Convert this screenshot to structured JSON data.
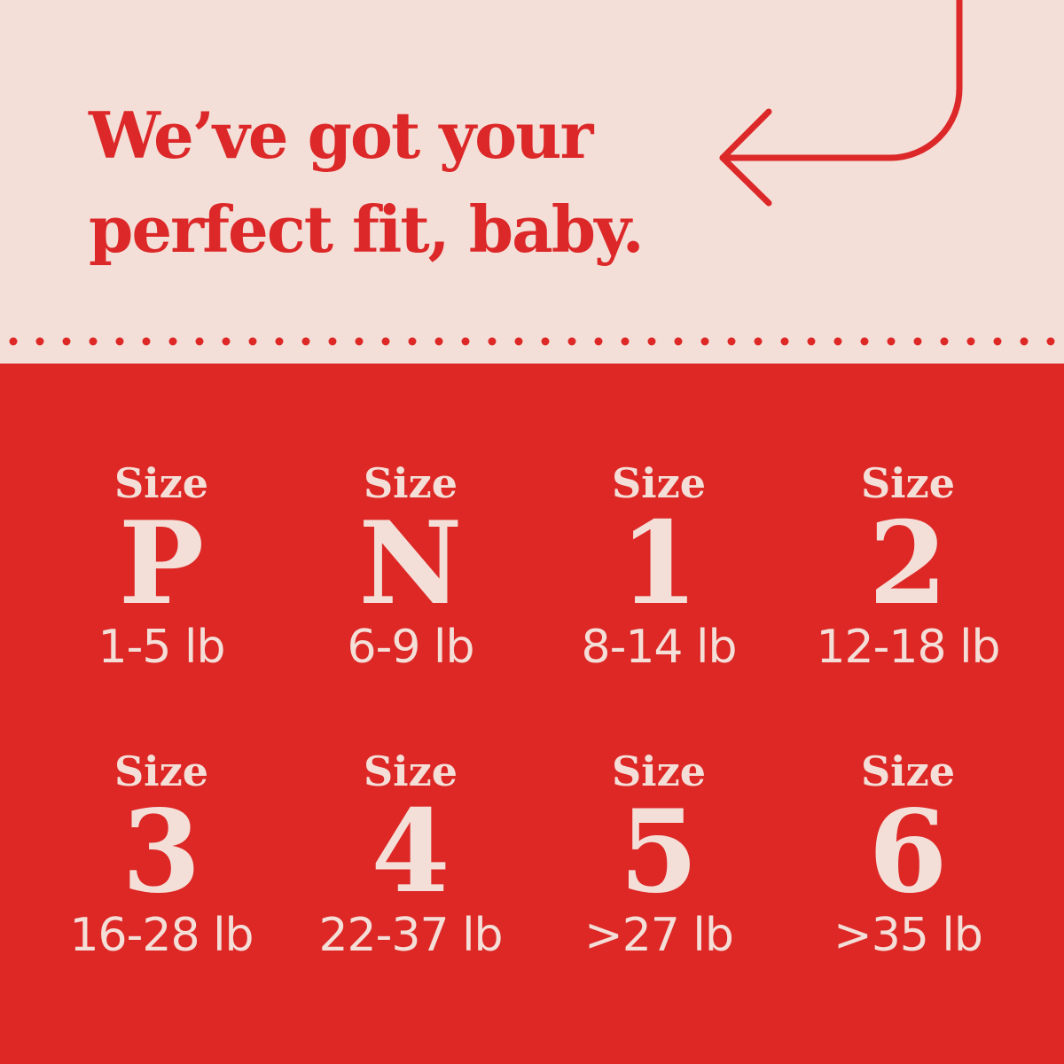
{
  "headline": {
    "line1": "We’ve got your",
    "line2": "perfect fit, baby."
  },
  "colors": {
    "background": "#f4dfd8",
    "accent_red": "#dd2826"
  },
  "decorations": {
    "arrow": "curved-left-arrow-icon",
    "divider": "dotted-line"
  },
  "sizes": [
    {
      "label": "Size",
      "code": "P",
      "weight": "1-5 lb"
    },
    {
      "label": "Size",
      "code": "N",
      "weight": "6-9 lb"
    },
    {
      "label": "Size",
      "code": "1",
      "weight": "8-14 lb"
    },
    {
      "label": "Size",
      "code": "2",
      "weight": "12-18 lb"
    },
    {
      "label": "Size",
      "code": "3",
      "weight": "16-28 lb"
    },
    {
      "label": "Size",
      "code": "4",
      "weight": "22-37 lb"
    },
    {
      "label": "Size",
      "code": "5",
      "weight": ">27 lb"
    },
    {
      "label": "Size",
      "code": "6",
      "weight": ">35 lb"
    }
  ]
}
